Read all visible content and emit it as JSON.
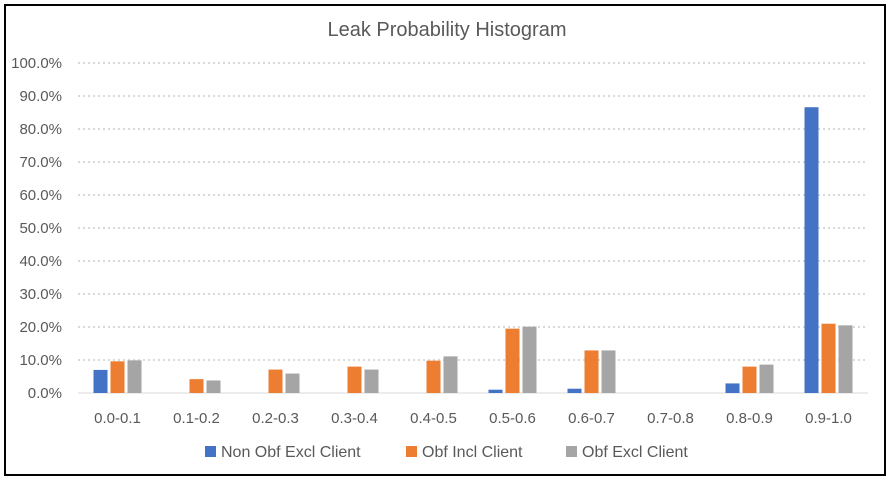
{
  "chart_data": {
    "type": "bar",
    "title": "Leak Probability Histogram",
    "xlabel": "",
    "ylabel": "",
    "ylim": [
      0,
      100
    ],
    "y_ticks": [
      "0.0%",
      "10.0%",
      "20.0%",
      "30.0%",
      "40.0%",
      "50.0%",
      "60.0%",
      "70.0%",
      "80.0%",
      "90.0%",
      "100.0%"
    ],
    "grid": true,
    "legend_position": "bottom",
    "categories": [
      "0.0-0.1",
      "0.1-0.2",
      "0.2-0.3",
      "0.3-0.4",
      "0.4-0.5",
      "0.5-0.6",
      "0.6-0.7",
      "0.7-0.8",
      "0.8-0.9",
      "0.9-1.0"
    ],
    "series": [
      {
        "name": "Non Obf Excl Client",
        "color": "#4472C4",
        "values": [
          7.0,
          0.0,
          0.0,
          0.0,
          0.0,
          1.0,
          1.3,
          0.0,
          2.9,
          86.6
        ]
      },
      {
        "name": "Obf Incl Client",
        "color": "#ED7D31",
        "values": [
          9.6,
          4.2,
          7.1,
          8.0,
          9.8,
          19.5,
          12.9,
          0.0,
          8.0,
          21.0
        ]
      },
      {
        "name": "Obf Excl Client",
        "color": "#A5A5A5",
        "values": [
          9.9,
          3.8,
          5.9,
          7.1,
          11.1,
          20.1,
          12.9,
          0.0,
          8.6,
          20.5
        ]
      }
    ]
  }
}
